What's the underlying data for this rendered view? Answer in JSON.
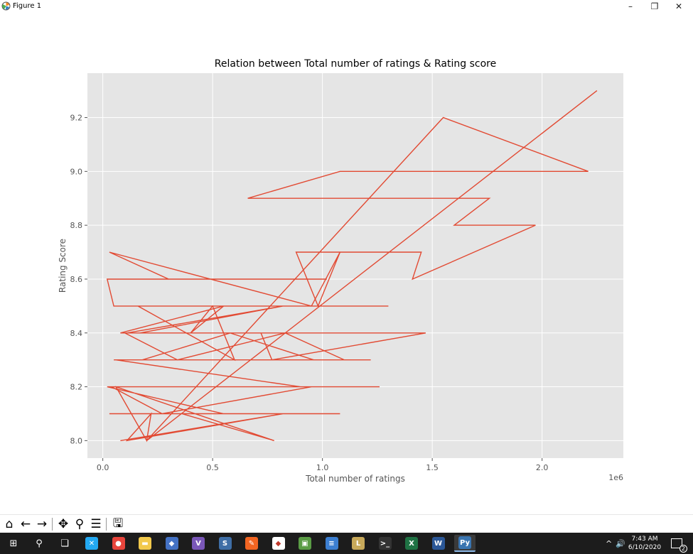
{
  "window": {
    "title": "Figure 1",
    "minimize": "–",
    "maximize": "❐",
    "close": "✕"
  },
  "chart_data": {
    "type": "line",
    "title": "Relation between Total number of ratings & Rating score",
    "xlabel": "Total number of ratings",
    "ylabel": "Rating Score",
    "x_offset_label": "1e6",
    "xlim": [
      -0.07,
      2.37
    ],
    "ylim": [
      7.935,
      9.365
    ],
    "xticks": [
      0.0,
      0.5,
      1.0,
      1.5,
      2.0
    ],
    "xtick_labels": [
      "0.0",
      "0.5",
      "1.0",
      "1.5",
      "2.0"
    ],
    "yticks": [
      8.0,
      8.2,
      8.4,
      8.6,
      8.8,
      9.0,
      9.2
    ],
    "ytick_labels": [
      "8.0",
      "8.2",
      "8.4",
      "8.6",
      "8.8",
      "9.0",
      "9.2"
    ],
    "grid": true,
    "line_color": "#e24a33",
    "background": "#e5e5e5",
    "series": [
      {
        "x": [
          2.25,
          0.2,
          1.55,
          2.21,
          1.08,
          0.66,
          1.76,
          1.6,
          1.97,
          1.41,
          1.45,
          0.88,
          0.98,
          1.08,
          0.95,
          0.03,
          0.3,
          1.02,
          0.02,
          0.05,
          1.3,
          0.16,
          0.6,
          0.5,
          0.4,
          0.55,
          0.08,
          0.11,
          0.82,
          0.17,
          0.72,
          0.77,
          1.47,
          0.1,
          0.34,
          0.83,
          1.1,
          0.05,
          0.4,
          1.05,
          0.21,
          1.22,
          0.18,
          0.58,
          0.96,
          0.06,
          0.9,
          0.15,
          0.55,
          1.26,
          0.08,
          0.32,
          0.6,
          1.13,
          0.04,
          0.27,
          0.95,
          0.02,
          0.55,
          0.85,
          1.08,
          0.07,
          0.42,
          0.03,
          0.68,
          0.25,
          0.96,
          0.04,
          0.36,
          0.78,
          0.06,
          0.2,
          0.22,
          0.11,
          0.82,
          0.08
        ],
        "y": [
          9.3,
          8.0,
          9.2,
          9.0,
          9.0,
          8.9,
          8.9,
          8.8,
          8.8,
          8.6,
          8.7,
          8.7,
          8.5,
          8.7,
          8.5,
          8.7,
          8.6,
          8.6,
          8.6,
          8.5,
          8.5,
          8.5,
          8.3,
          8.5,
          8.4,
          8.5,
          8.4,
          8.4,
          8.5,
          8.4,
          8.4,
          8.3,
          8.4,
          8.4,
          8.3,
          8.4,
          8.3,
          8.3,
          8.3,
          8.3,
          8.3,
          8.3,
          8.3,
          8.4,
          8.3,
          8.3,
          8.2,
          8.2,
          8.2,
          8.2,
          8.2,
          8.2,
          8.2,
          8.2,
          8.2,
          8.1,
          8.2,
          8.2,
          8.1,
          8.1,
          8.1,
          8.1,
          8.1,
          8.1,
          8.1,
          8.1,
          8.1,
          8.1,
          8.1,
          8.0,
          8.2,
          8.0,
          8.1,
          8.0,
          8.1,
          8.0
        ]
      }
    ]
  },
  "toolbar": {
    "home": "⌂",
    "back": "←",
    "forward": "→",
    "pan": "✥",
    "zoom": "⚲",
    "configure": "☰",
    "save": "🖫"
  },
  "taskbar": {
    "start": "⊞",
    "search": "⚲",
    "taskview": "❏",
    "apps": [
      {
        "name": "vscode",
        "glyph": "✕",
        "color": "#23a9f2"
      },
      {
        "name": "chrome",
        "glyph": "●",
        "color": "#e8453c"
      },
      {
        "name": "explorer",
        "glyph": "▬",
        "color": "#f2c94c"
      },
      {
        "name": "app-blue",
        "glyph": "◆",
        "color": "#4472c4"
      },
      {
        "name": "visual-studio",
        "glyph": "V",
        "color": "#7a57b8"
      },
      {
        "name": "ssms",
        "glyph": "S",
        "color": "#3f6ea6"
      },
      {
        "name": "app-orange",
        "glyph": "✎",
        "color": "#f26522"
      },
      {
        "name": "git",
        "glyph": "◆",
        "color": "#ffffff"
      },
      {
        "name": "app-lock",
        "glyph": "▣",
        "color": "#5a9c45"
      },
      {
        "name": "network",
        "glyph": "≡",
        "color": "#3c7fd1"
      },
      {
        "name": "app-game",
        "glyph": "L",
        "color": "#c8a95a"
      },
      {
        "name": "terminal",
        "glyph": ">_",
        "color": "#333333"
      },
      {
        "name": "excel",
        "glyph": "X",
        "color": "#1f7244"
      },
      {
        "name": "word",
        "glyph": "W",
        "color": "#2b5797"
      },
      {
        "name": "python",
        "glyph": "Py",
        "color": "#3a75b0"
      }
    ],
    "tray_caret": "^",
    "volume": "🔊",
    "time": "7:43 AM",
    "date": "6/10/2020",
    "notifications": "2"
  }
}
